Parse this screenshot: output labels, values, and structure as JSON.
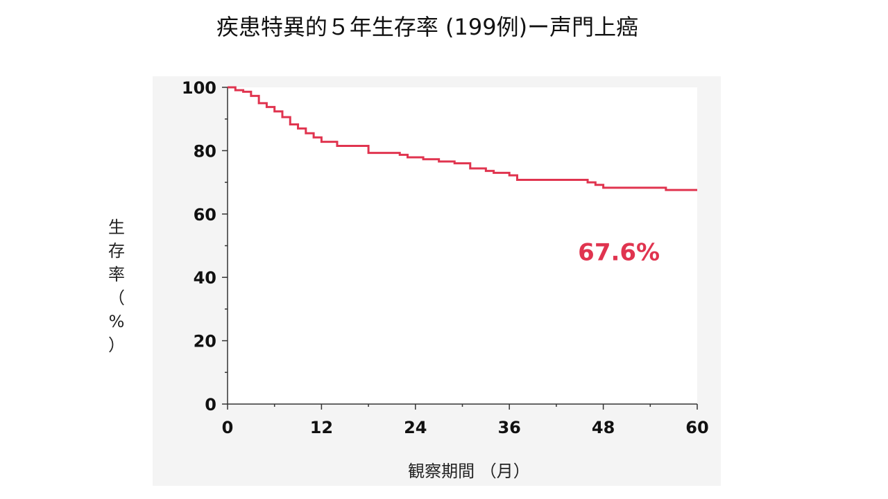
{
  "slide": {
    "title": "疾患特異的５年生存率 (199例)ー声門上癌"
  },
  "colors": {
    "curve": "#e0344f",
    "axis": "#333333",
    "plot_bg": "#ffffff",
    "panel_bg": "#f4f4f4"
  },
  "chart_data": {
    "type": "line",
    "step": true,
    "title": "疾患特異的５年生存率 (199例)ー声門上癌",
    "xlabel": "観察期間 （月）",
    "ylabel": "生存率 （%）",
    "xlim": [
      0,
      60
    ],
    "ylim": [
      0,
      100
    ],
    "x_ticks": [
      0,
      12,
      24,
      36,
      48,
      60
    ],
    "y_ticks": [
      0,
      20,
      40,
      60,
      80,
      100
    ],
    "grid": false,
    "legend": "none",
    "series": [
      {
        "x": [
          0,
          1,
          2,
          3,
          4,
          5,
          6,
          7,
          8,
          9,
          10,
          11,
          12,
          14,
          18,
          22,
          23,
          25,
          27,
          29,
          31,
          33,
          34,
          36,
          37,
          46,
          47,
          48,
          56,
          60
        ],
        "y": [
          100,
          99.1,
          98.6,
          97.3,
          95.0,
          93.8,
          92.4,
          90.6,
          88.3,
          87.0,
          85.5,
          84.2,
          82.8,
          81.5,
          79.3,
          78.7,
          77.9,
          77.3,
          76.6,
          76.0,
          74.4,
          73.6,
          73.0,
          72.2,
          70.8,
          70.0,
          69.2,
          68.3,
          67.6,
          67.6
        ]
      }
    ],
    "annotations": [
      {
        "text": "67.6%",
        "x": 50,
        "y": 48,
        "color": "#e0344f"
      }
    ]
  }
}
